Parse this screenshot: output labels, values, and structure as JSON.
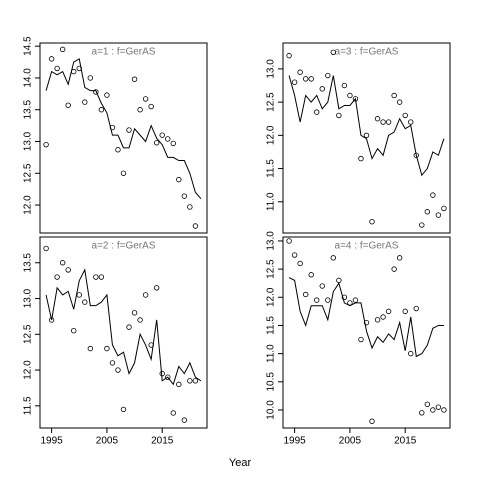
{
  "chart_data": {
    "type": "line",
    "xlabel": "Year",
    "x": [
      1994,
      1995,
      1996,
      1997,
      1998,
      1999,
      2000,
      2001,
      2002,
      2003,
      2004,
      2005,
      2006,
      2007,
      2008,
      2009,
      2010,
      2011,
      2012,
      2013,
      2014,
      2015,
      2016,
      2017,
      2018,
      2019,
      2020,
      2021,
      2022
    ],
    "xlim": [
      1992.9,
      2023.1
    ],
    "xticks": [
      1995,
      2005,
      2015
    ],
    "panels": [
      {
        "title": "a=1 : f=GerAS",
        "ylim": [
          11.56,
          14.55
        ],
        "yticks": [
          {
            "value": 12,
            "label": "12.0"
          },
          {
            "value": 12.5,
            "label": "12.5"
          },
          {
            "value": 13,
            "label": "13.0"
          },
          {
            "value": 13.5,
            "label": "13.5"
          },
          {
            "value": 14,
            "label": "14.0"
          },
          {
            "value": 14.5,
            "label": "14.5"
          }
        ],
        "series": [
          {
            "style": "line",
            "color": "#000000",
            "values": [
              13.8,
              14.1,
              14.05,
              14.1,
              13.9,
              14.25,
              14.3,
              13.85,
              13.8,
              13.8,
              13.6,
              13.45,
              13.1,
              13.1,
              12.9,
              12.9,
              13.2,
              13.1,
              13.0,
              13.25,
              13.05,
              12.95,
              12.75,
              12.75,
              12.7,
              12.7,
              12.5,
              12.2,
              12.1
            ]
          },
          {
            "style": "points",
            "color": "#000000",
            "values": [
              12.95,
              14.3,
              14.15,
              14.45,
              13.57,
              14.1,
              14.15,
              13.62,
              14.0,
              13.78,
              13.5,
              13.73,
              13.22,
              12.87,
              12.5,
              13.18,
              13.98,
              13.5,
              13.67,
              13.55,
              12.98,
              13.1,
              13.04,
              12.97,
              12.4,
              12.14,
              11.97,
              11.67,
              null
            ]
          }
        ]
      },
      {
        "title": "a=2 : f=GerAS",
        "ylim": [
          11.19,
          13.86
        ],
        "yticks": [
          {
            "value": 11.5,
            "label": "11.5"
          },
          {
            "value": 12,
            "label": "12.0"
          },
          {
            "value": 12.5,
            "label": "12.5"
          },
          {
            "value": 13,
            "label": "13.0"
          },
          {
            "value": 13.5,
            "label": "13.5"
          }
        ],
        "series": [
          {
            "style": "line",
            "color": "#000000",
            "values": [
              13.05,
              12.7,
              13.15,
              13.05,
              13.1,
              12.85,
              13.25,
              13.4,
              12.9,
              12.9,
              12.95,
              13.05,
              12.35,
              12.2,
              12.25,
              11.95,
              12.1,
              12.5,
              12.35,
              12.15,
              12.7,
              11.85,
              11.9,
              11.8,
              12.05,
              11.95,
              12.1,
              11.9,
              11.85
            ]
          },
          {
            "style": "points",
            "color": "#000000",
            "values": [
              13.7,
              12.7,
              13.3,
              13.5,
              13.4,
              12.55,
              13.05,
              12.95,
              12.3,
              13.3,
              13.3,
              12.3,
              12.1,
              12.0,
              11.45,
              12.6,
              12.8,
              12.7,
              13.05,
              12.35,
              13.15,
              11.95,
              11.9,
              11.4,
              11.8,
              11.3,
              11.85,
              11.85,
              null
            ]
          }
        ]
      },
      {
        "title": "a=3 : f=GerAS",
        "ylim": [
          10.53,
          13.39
        ],
        "yticks": [
          {
            "value": 11,
            "label": "11.0"
          },
          {
            "value": 11.5,
            "label": "11.5"
          },
          {
            "value": 12,
            "label": "12.0"
          },
          {
            "value": 12.5,
            "label": "12.5"
          },
          {
            "value": 13,
            "label": "13.0"
          }
        ],
        "series": [
          {
            "style": "line",
            "color": "#000000",
            "values": [
              12.9,
              12.6,
              12.2,
              12.6,
              12.5,
              12.6,
              12.4,
              12.5,
              12.9,
              12.4,
              12.45,
              12.45,
              12.55,
              12.0,
              11.95,
              11.65,
              11.8,
              11.7,
              12.0,
              12.05,
              12.25,
              12.1,
              12.15,
              11.7,
              11.4,
              11.5,
              11.75,
              11.7,
              11.95
            ]
          },
          {
            "style": "points",
            "color": "#000000",
            "values": [
              13.2,
              12.8,
              12.95,
              12.85,
              12.85,
              12.35,
              12.7,
              12.9,
              13.25,
              12.3,
              12.75,
              12.6,
              12.55,
              11.65,
              12.0,
              10.7,
              12.25,
              12.2,
              12.2,
              12.6,
              12.5,
              12.3,
              12.2,
              11.7,
              10.65,
              10.85,
              11.1,
              10.8,
              10.9
            ]
          }
        ]
      },
      {
        "title": "a=4 : f=GerAS",
        "ylim": [
          9.68,
          13.07
        ],
        "yticks": [
          {
            "value": 10,
            "label": "10.0"
          },
          {
            "value": 10.5,
            "label": "10.5"
          },
          {
            "value": 11,
            "label": "11.0"
          },
          {
            "value": 11.5,
            "label": "11.5"
          },
          {
            "value": 12,
            "label": "12.0"
          },
          {
            "value": 12.5,
            "label": "12.5"
          },
          {
            "value": 13,
            "label": "13.0"
          }
        ],
        "series": [
          {
            "style": "line",
            "color": "#000000",
            "values": [
              12.35,
              12.3,
              11.75,
              11.5,
              11.85,
              11.85,
              11.85,
              11.6,
              12.1,
              12.25,
              11.9,
              11.85,
              11.9,
              11.9,
              11.4,
              11.1,
              11.3,
              11.2,
              11.35,
              11.25,
              11.55,
              11.05,
              11.65,
              10.95,
              11.0,
              11.15,
              11.45,
              11.5,
              11.5
            ]
          },
          {
            "style": "points",
            "color": "#000000",
            "values": [
              13.0,
              12.75,
              12.6,
              12.05,
              12.4,
              11.95,
              12.2,
              11.95,
              12.7,
              12.3,
              12.0,
              11.9,
              11.95,
              11.25,
              11.55,
              9.8,
              11.6,
              11.65,
              11.75,
              12.5,
              12.7,
              11.75,
              11.0,
              11.8,
              9.95,
              10.1,
              10.0,
              10.05,
              10.0
            ]
          }
        ]
      }
    ]
  }
}
